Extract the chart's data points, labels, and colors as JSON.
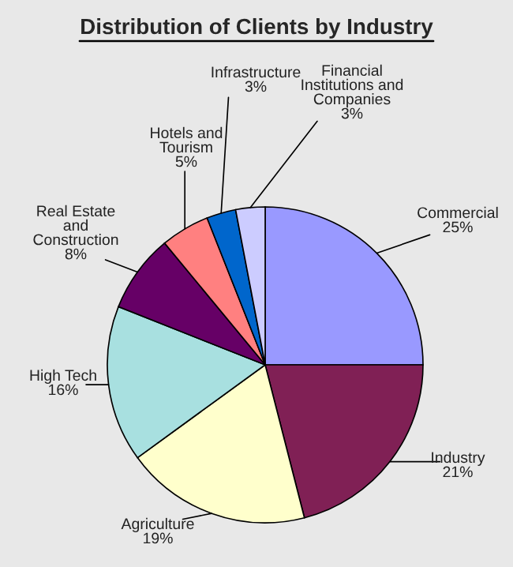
{
  "chart_data": {
    "type": "pie",
    "title": "Distribution of Clients by Industry",
    "categories": [
      "Commercial",
      "Industry",
      "Agriculture",
      "High Tech",
      "Real Estate\nand\nConstruction",
      "Hotels and\nTourism",
      "Infrastructure",
      "Financial\nInstitutions and\nCompanies"
    ],
    "values": [
      25,
      21,
      19,
      16,
      8,
      5,
      3,
      3
    ],
    "value_labels": [
      "25%",
      "21%",
      "19%",
      "16%",
      "8%",
      "5%",
      "3%",
      "3%"
    ],
    "colors": [
      "#9999ff",
      "#802055",
      "#ffffcc",
      "#a8e0e0",
      "#660066",
      "#ff8080",
      "#0066cc",
      "#ccccff"
    ],
    "legend": false
  }
}
